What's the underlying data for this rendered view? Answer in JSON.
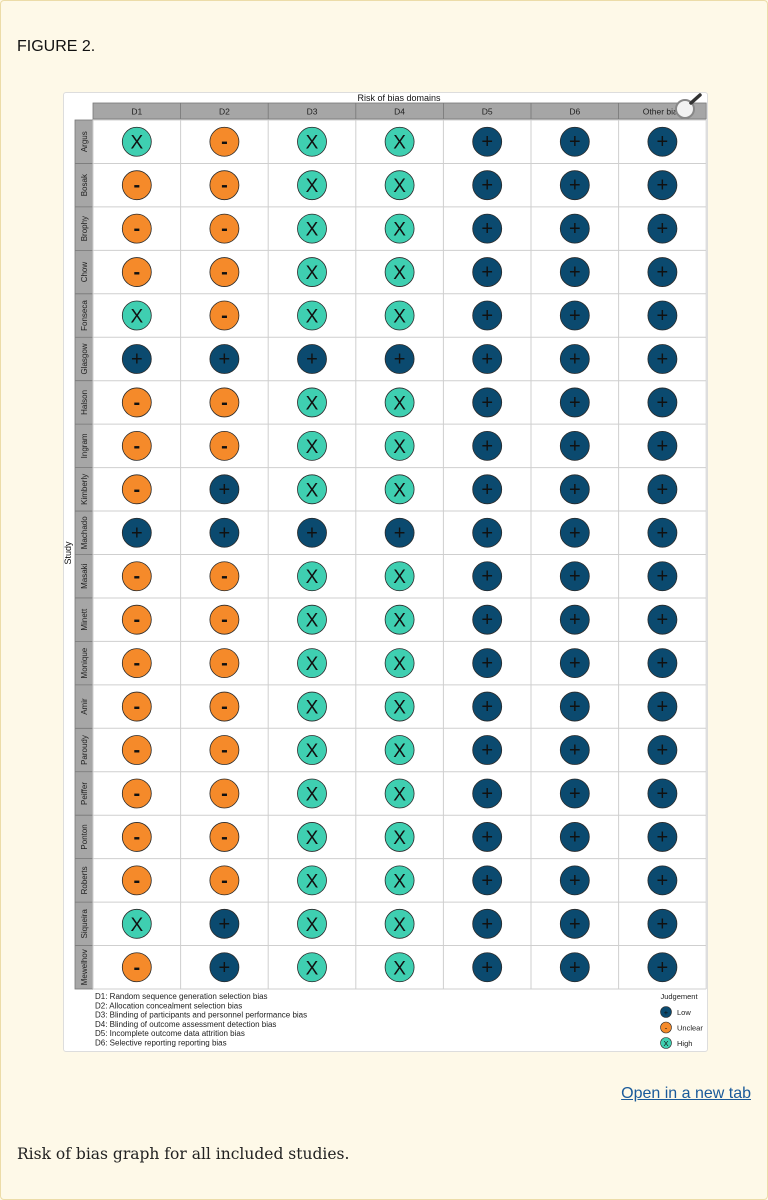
{
  "figure": {
    "label": "FIGURE 2.",
    "open_link": "Open in a new tab",
    "caption": "Risk of bias graph for all included studies."
  },
  "colors": {
    "low": "#0b4a6f",
    "unclear": "#f58a2a",
    "high": "#3fcfb1",
    "header_bg": "#a6a6a6",
    "grid": "#cfcfcf"
  },
  "chart_data": {
    "type": "table",
    "title": "Risk of bias domains",
    "y_axis_label": "Study",
    "domains": [
      "D1",
      "D2",
      "D3",
      "D4",
      "D5",
      "D6",
      "Other bias"
    ],
    "studies": [
      "Argus",
      "Bosak",
      "Brophy",
      "Chow",
      "Fonseca",
      "Glasgow",
      "Halson",
      "Ingram",
      "Kimberly",
      "Machado",
      "Masaki",
      "Minett",
      "Monique",
      "Amir",
      "Paroudy",
      "Peiffer",
      "Ponton",
      "Roberts",
      "Siqueira",
      "Mewelhov"
    ],
    "judgements": [
      [
        "high",
        "unclear",
        "high",
        "high",
        "low",
        "low",
        "low"
      ],
      [
        "unclear",
        "unclear",
        "high",
        "high",
        "low",
        "low",
        "low"
      ],
      [
        "unclear",
        "unclear",
        "high",
        "high",
        "low",
        "low",
        "low"
      ],
      [
        "unclear",
        "unclear",
        "high",
        "high",
        "low",
        "low",
        "low"
      ],
      [
        "high",
        "unclear",
        "high",
        "high",
        "low",
        "low",
        "low"
      ],
      [
        "low",
        "low",
        "low",
        "low",
        "low",
        "low",
        "low"
      ],
      [
        "unclear",
        "unclear",
        "high",
        "high",
        "low",
        "low",
        "low"
      ],
      [
        "unclear",
        "unclear",
        "high",
        "high",
        "low",
        "low",
        "low"
      ],
      [
        "unclear",
        "low",
        "high",
        "high",
        "low",
        "low",
        "low"
      ],
      [
        "low",
        "low",
        "low",
        "low",
        "low",
        "low",
        "low"
      ],
      [
        "unclear",
        "unclear",
        "high",
        "high",
        "low",
        "low",
        "low"
      ],
      [
        "unclear",
        "unclear",
        "high",
        "high",
        "low",
        "low",
        "low"
      ],
      [
        "unclear",
        "unclear",
        "high",
        "high",
        "low",
        "low",
        "low"
      ],
      [
        "unclear",
        "unclear",
        "high",
        "high",
        "low",
        "low",
        "low"
      ],
      [
        "unclear",
        "unclear",
        "high",
        "high",
        "low",
        "low",
        "low"
      ],
      [
        "unclear",
        "unclear",
        "high",
        "high",
        "low",
        "low",
        "low"
      ],
      [
        "unclear",
        "unclear",
        "high",
        "high",
        "low",
        "low",
        "low"
      ],
      [
        "unclear",
        "unclear",
        "high",
        "high",
        "low",
        "low",
        "low"
      ],
      [
        "high",
        "low",
        "high",
        "high",
        "low",
        "low",
        "low"
      ],
      [
        "unclear",
        "low",
        "high",
        "high",
        "low",
        "low",
        "low"
      ]
    ],
    "symbols": {
      "low": "+",
      "unclear": "-",
      "high": "X"
    },
    "domain_notes": [
      "D1: Random sequence generation  selection bias",
      "D2: Allocation concealment  selection bias",
      "D3: Blinding of participants and personnel  performance bias",
      "D4: Blinding of outcome assessment  detection bias",
      "D5: Incomplete outcome data  attrition bias",
      "D6: Selective reporting  reporting bias"
    ],
    "legend": {
      "title": "Judgement",
      "items": [
        {
          "key": "low",
          "label": "Low"
        },
        {
          "key": "unclear",
          "label": "Unclear"
        },
        {
          "key": "high",
          "label": "High"
        }
      ]
    }
  }
}
